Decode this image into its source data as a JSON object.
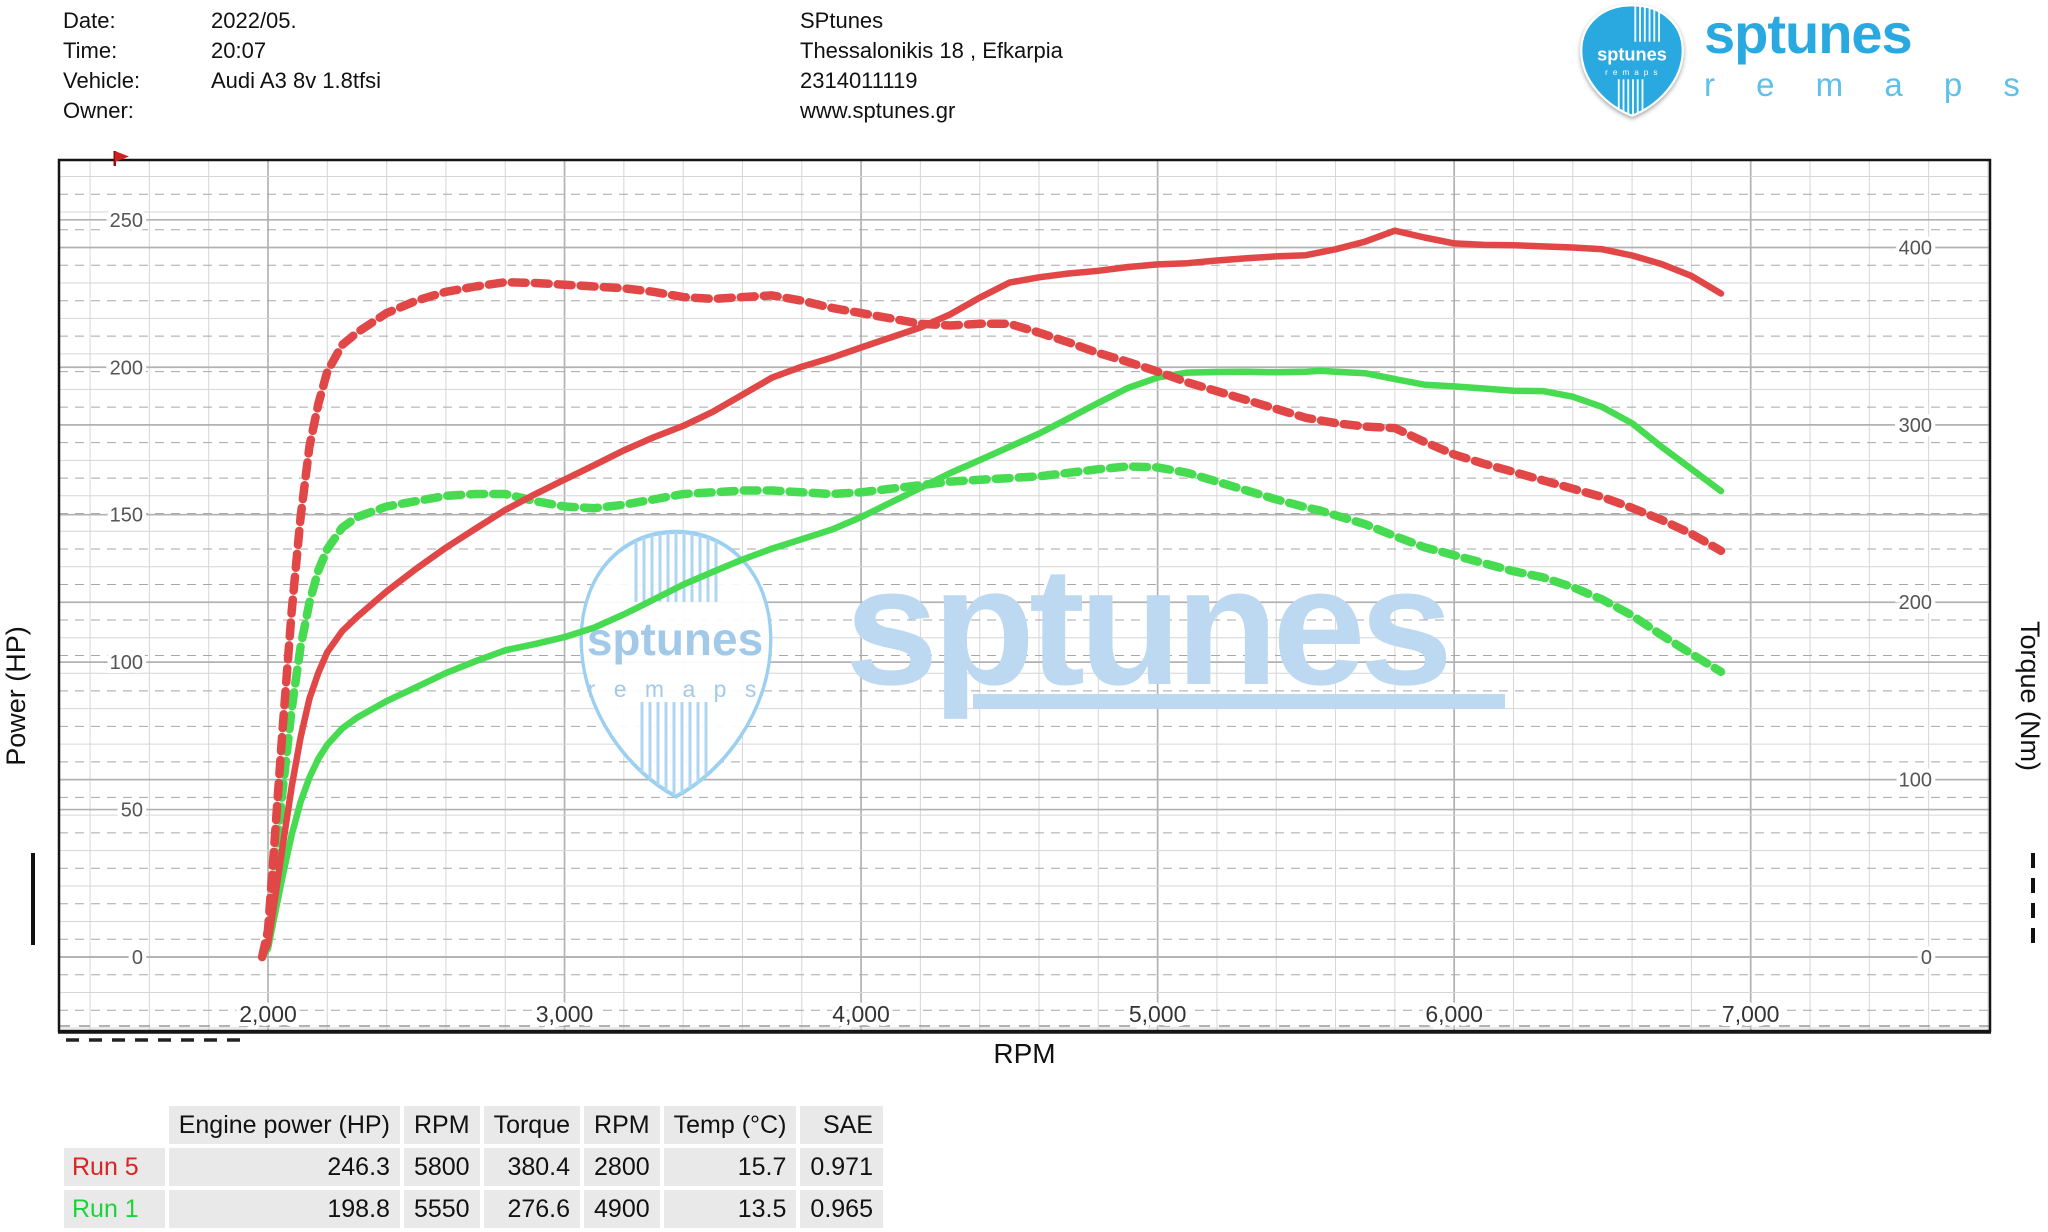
{
  "header": {
    "info": {
      "rows": [
        {
          "label": "Date:",
          "value": "2022/05."
        },
        {
          "label": "Time:",
          "value": "20:07"
        },
        {
          "label": "Vehicle:",
          "value": "Audi A3 8v 1.8tfsi"
        },
        {
          "label": "Owner:",
          "value": ""
        }
      ]
    },
    "shop": {
      "name": "SPtunes",
      "address": "Thessalonikis 18 , Efkarpia",
      "phone": "2314011119",
      "website": "www.sptunes.gr"
    },
    "logo": {
      "pick_text": "sptunes",
      "pick_subtext": "r e m a p s",
      "brand": "sptunes",
      "brand_sub": "r e m a p s",
      "blue": "#29a9e0",
      "light_blue": "#5fc0e9"
    }
  },
  "chart_data": {
    "type": "line",
    "title": "Dyno power and torque curves",
    "x_axis": {
      "label": "RPM",
      "minor_step": 200,
      "range": [
        1280,
        7800
      ],
      "ticks": [
        {
          "v": 2000,
          "label": "2,000"
        },
        {
          "v": 3000,
          "label": "3,000"
        },
        {
          "v": 4000,
          "label": "4,000"
        },
        {
          "v": 5000,
          "label": "5,000"
        },
        {
          "v": 6000,
          "label": "6,000"
        },
        {
          "v": 7000,
          "label": "7,000"
        }
      ]
    },
    "y_left": {
      "label": "Power (HP)",
      "ticks": [
        0,
        50,
        100,
        150,
        200,
        250
      ],
      "range": [
        -25,
        270
      ]
    },
    "y_right": {
      "label": "Torque (Nm)",
      "ticks": [
        0,
        100,
        200,
        300,
        400
      ],
      "minor_step": 10,
      "range": [
        -42,
        450
      ]
    },
    "grid": {
      "major_color": "#b2b2b2",
      "minor_color": "#d6d6d6",
      "dash_color": "#a8a8a8"
    },
    "legend": {
      "left_sample": "solid",
      "right_sample": "dashed"
    },
    "watermark": {
      "text": "sptunes",
      "subtext": "r e m a p s",
      "big_text_color": "#bcd9f1",
      "pick_stroke": "#9cd0f0",
      "pick_text_color": "#a3c9e8",
      "stripe_color": "#aed6f2"
    },
    "series": [
      {
        "id": "run1-torque",
        "run": "Run 1",
        "quantity": "Torque",
        "unit": "Nm",
        "axis": "right",
        "dash": true,
        "color": "#46db50",
        "width": 8.5,
        "points": [
          [
            1980,
            0
          ],
          [
            2000,
            10
          ],
          [
            2020,
            45
          ],
          [
            2050,
            95
          ],
          [
            2080,
            140
          ],
          [
            2110,
            175
          ],
          [
            2140,
            200
          ],
          [
            2170,
            218
          ],
          [
            2200,
            230
          ],
          [
            2250,
            242
          ],
          [
            2300,
            248
          ],
          [
            2400,
            254
          ],
          [
            2500,
            257
          ],
          [
            2600,
            260
          ],
          [
            2700,
            261
          ],
          [
            2800,
            261
          ],
          [
            2900,
            257
          ],
          [
            3000,
            254
          ],
          [
            3100,
            253
          ],
          [
            3200,
            255
          ],
          [
            3300,
            258
          ],
          [
            3400,
            261
          ],
          [
            3500,
            262
          ],
          [
            3600,
            263
          ],
          [
            3700,
            263
          ],
          [
            3800,
            262
          ],
          [
            3900,
            261
          ],
          [
            4000,
            262
          ],
          [
            4100,
            264
          ],
          [
            4200,
            266
          ],
          [
            4300,
            268
          ],
          [
            4400,
            269
          ],
          [
            4500,
            270
          ],
          [
            4600,
            271
          ],
          [
            4700,
            273
          ],
          [
            4800,
            275
          ],
          [
            4900,
            276.6
          ],
          [
            5000,
            276
          ],
          [
            5100,
            273
          ],
          [
            5200,
            268
          ],
          [
            5300,
            263
          ],
          [
            5400,
            258
          ],
          [
            5500,
            253.5
          ],
          [
            5550,
            251.6
          ],
          [
            5600,
            249
          ],
          [
            5700,
            244
          ],
          [
            5800,
            237.3
          ],
          [
            5900,
            231
          ],
          [
            6000,
            226.5
          ],
          [
            6100,
            222
          ],
          [
            6200,
            217.5
          ],
          [
            6300,
            214
          ],
          [
            6400,
            208.5
          ],
          [
            6500,
            201.5
          ],
          [
            6600,
            192.6
          ],
          [
            6700,
            181.4
          ],
          [
            6800,
            170.9
          ],
          [
            6900,
            160.8
          ]
        ]
      },
      {
        "id": "run1-power",
        "run": "Run 1",
        "quantity": "Engine power",
        "unit": "HP",
        "axis": "left",
        "dash": false,
        "color": "#46db50",
        "width": 6.5,
        "points": [
          [
            1980,
            0
          ],
          [
            2000,
            2.8
          ],
          [
            2020,
            12.9
          ],
          [
            2050,
            27.7
          ],
          [
            2080,
            41.5
          ],
          [
            2110,
            52.6
          ],
          [
            2140,
            60.9
          ],
          [
            2170,
            67.3
          ],
          [
            2200,
            72
          ],
          [
            2250,
            77.5
          ],
          [
            2300,
            81.2
          ],
          [
            2400,
            86.8
          ],
          [
            2500,
            91.5
          ],
          [
            2600,
            96.3
          ],
          [
            2700,
            100.3
          ],
          [
            2800,
            104
          ],
          [
            2900,
            106.1
          ],
          [
            3000,
            108.5
          ],
          [
            3100,
            111.7
          ],
          [
            3200,
            116.2
          ],
          [
            3300,
            121.2
          ],
          [
            3400,
            126.3
          ],
          [
            3500,
            130.6
          ],
          [
            3600,
            134.8
          ],
          [
            3700,
            138.5
          ],
          [
            3800,
            141.7
          ],
          [
            3900,
            144.9
          ],
          [
            4000,
            149.2
          ],
          [
            4100,
            154.1
          ],
          [
            4200,
            159.1
          ],
          [
            4300,
            164.1
          ],
          [
            4400,
            168.5
          ],
          [
            4500,
            173
          ],
          [
            4600,
            177.5
          ],
          [
            4700,
            182.7
          ],
          [
            4800,
            187.9
          ],
          [
            4900,
            193
          ],
          [
            5000,
            196.5
          ],
          [
            5100,
            198.2
          ],
          [
            5200,
            198.4
          ],
          [
            5300,
            198.5
          ],
          [
            5400,
            198.3
          ],
          [
            5500,
            198.5
          ],
          [
            5550,
            198.8
          ],
          [
            5600,
            198.5
          ],
          [
            5700,
            198
          ],
          [
            5800,
            196
          ],
          [
            5900,
            194.1
          ],
          [
            6000,
            193.5
          ],
          [
            6100,
            192.8
          ],
          [
            6200,
            192
          ],
          [
            6300,
            191.9
          ],
          [
            6400,
            190
          ],
          [
            6500,
            186.5
          ],
          [
            6600,
            181
          ],
          [
            6700,
            173
          ],
          [
            6800,
            165.5
          ],
          [
            6900,
            158
          ]
        ]
      },
      {
        "id": "run5-torque",
        "run": "Run 5",
        "quantity": "Torque",
        "unit": "Nm",
        "axis": "right",
        "dash": true,
        "color": "#e14747",
        "width": 8.5,
        "points": [
          [
            1980,
            0
          ],
          [
            2000,
            15
          ],
          [
            2020,
            60
          ],
          [
            2050,
            130
          ],
          [
            2080,
            195
          ],
          [
            2110,
            248
          ],
          [
            2140,
            288
          ],
          [
            2170,
            312
          ],
          [
            2200,
            330
          ],
          [
            2250,
            345
          ],
          [
            2300,
            352
          ],
          [
            2400,
            363
          ],
          [
            2500,
            370
          ],
          [
            2600,
            375
          ],
          [
            2700,
            378
          ],
          [
            2800,
            380.4
          ],
          [
            2900,
            380
          ],
          [
            3000,
            379
          ],
          [
            3100,
            378
          ],
          [
            3200,
            377
          ],
          [
            3300,
            375
          ],
          [
            3400,
            372
          ],
          [
            3500,
            371
          ],
          [
            3600,
            372
          ],
          [
            3700,
            373
          ],
          [
            3800,
            370
          ],
          [
            3900,
            366
          ],
          [
            4000,
            363
          ],
          [
            4100,
            360
          ],
          [
            4200,
            357
          ],
          [
            4300,
            356
          ],
          [
            4400,
            357
          ],
          [
            4500,
            357
          ],
          [
            4600,
            352
          ],
          [
            4700,
            346.5
          ],
          [
            4800,
            340.5
          ],
          [
            4900,
            335.5
          ],
          [
            5000,
            330
          ],
          [
            5100,
            324
          ],
          [
            5200,
            319
          ],
          [
            5300,
            314
          ],
          [
            5400,
            309
          ],
          [
            5500,
            304
          ],
          [
            5600,
            301
          ],
          [
            5700,
            299
          ],
          [
            5800,
            298.2
          ],
          [
            5900,
            290.4
          ],
          [
            6000,
            283.3
          ],
          [
            6100,
            278.1
          ],
          [
            6200,
            273.5
          ],
          [
            6300,
            268.7
          ],
          [
            6400,
            264
          ],
          [
            6500,
            259.3
          ],
          [
            6600,
            253.2
          ],
          [
            6700,
            246.4
          ],
          [
            6800,
            238.6
          ],
          [
            6900,
            229
          ]
        ]
      },
      {
        "id": "run5-power",
        "run": "Run 5",
        "quantity": "Engine power",
        "unit": "HP",
        "axis": "left",
        "dash": false,
        "color": "#e14747",
        "width": 6.5,
        "points": [
          [
            1980,
            0
          ],
          [
            2000,
            4.3
          ],
          [
            2020,
            17.3
          ],
          [
            2050,
            37.9
          ],
          [
            2080,
            57.8
          ],
          [
            2110,
            74.5
          ],
          [
            2140,
            87.7
          ],
          [
            2170,
            96.4
          ],
          [
            2200,
            103.4
          ],
          [
            2250,
            110.5
          ],
          [
            2300,
            115.3
          ],
          [
            2400,
            124
          ],
          [
            2500,
            131.7
          ],
          [
            2600,
            138.8
          ],
          [
            2700,
            145.3
          ],
          [
            2800,
            151.6
          ],
          [
            2900,
            156.9
          ],
          [
            3000,
            161.9
          ],
          [
            3100,
            166.8
          ],
          [
            3200,
            171.8
          ],
          [
            3300,
            176.2
          ],
          [
            3400,
            180.1
          ],
          [
            3500,
            184.9
          ],
          [
            3600,
            190.7
          ],
          [
            3700,
            196.5
          ],
          [
            3800,
            200.2
          ],
          [
            3900,
            203.2
          ],
          [
            4000,
            206.7
          ],
          [
            4100,
            210.1
          ],
          [
            4200,
            213.5
          ],
          [
            4300,
            217.9
          ],
          [
            4400,
            223.6
          ],
          [
            4500,
            228.7
          ],
          [
            4600,
            230.5
          ],
          [
            4700,
            231.8
          ],
          [
            4800,
            232.7
          ],
          [
            4900,
            234
          ],
          [
            5000,
            234.9
          ],
          [
            5100,
            235.3
          ],
          [
            5200,
            236.2
          ],
          [
            5300,
            237
          ],
          [
            5400,
            237.6
          ],
          [
            5500,
            238
          ],
          [
            5600,
            240
          ],
          [
            5700,
            242.6
          ],
          [
            5800,
            246.3
          ],
          [
            5900,
            244
          ],
          [
            6000,
            242
          ],
          [
            6100,
            241.5
          ],
          [
            6200,
            241.4
          ],
          [
            6300,
            241
          ],
          [
            6400,
            240.6
          ],
          [
            6500,
            240
          ],
          [
            6600,
            237.9
          ],
          [
            6700,
            235
          ],
          [
            6800,
            231
          ],
          [
            6900,
            225
          ]
        ]
      }
    ]
  },
  "table": {
    "columns": [
      "Engine power (HP)",
      "RPM",
      "Torque",
      "RPM",
      "Temp (°C)",
      "SAE"
    ],
    "rows": [
      {
        "name": "Run 5",
        "color": "#dd2222",
        "power": "246.3",
        "power_rpm": "5800",
        "torque": "380.4",
        "torque_rpm": "2800",
        "temp": "15.7",
        "sae": "0.971"
      },
      {
        "name": "Run 1",
        "color": "#1fd23c",
        "power": "198.8",
        "power_rpm": "5550",
        "torque": "276.6",
        "torque_rpm": "4900",
        "temp": "13.5",
        "sae": "0.965"
      }
    ]
  }
}
